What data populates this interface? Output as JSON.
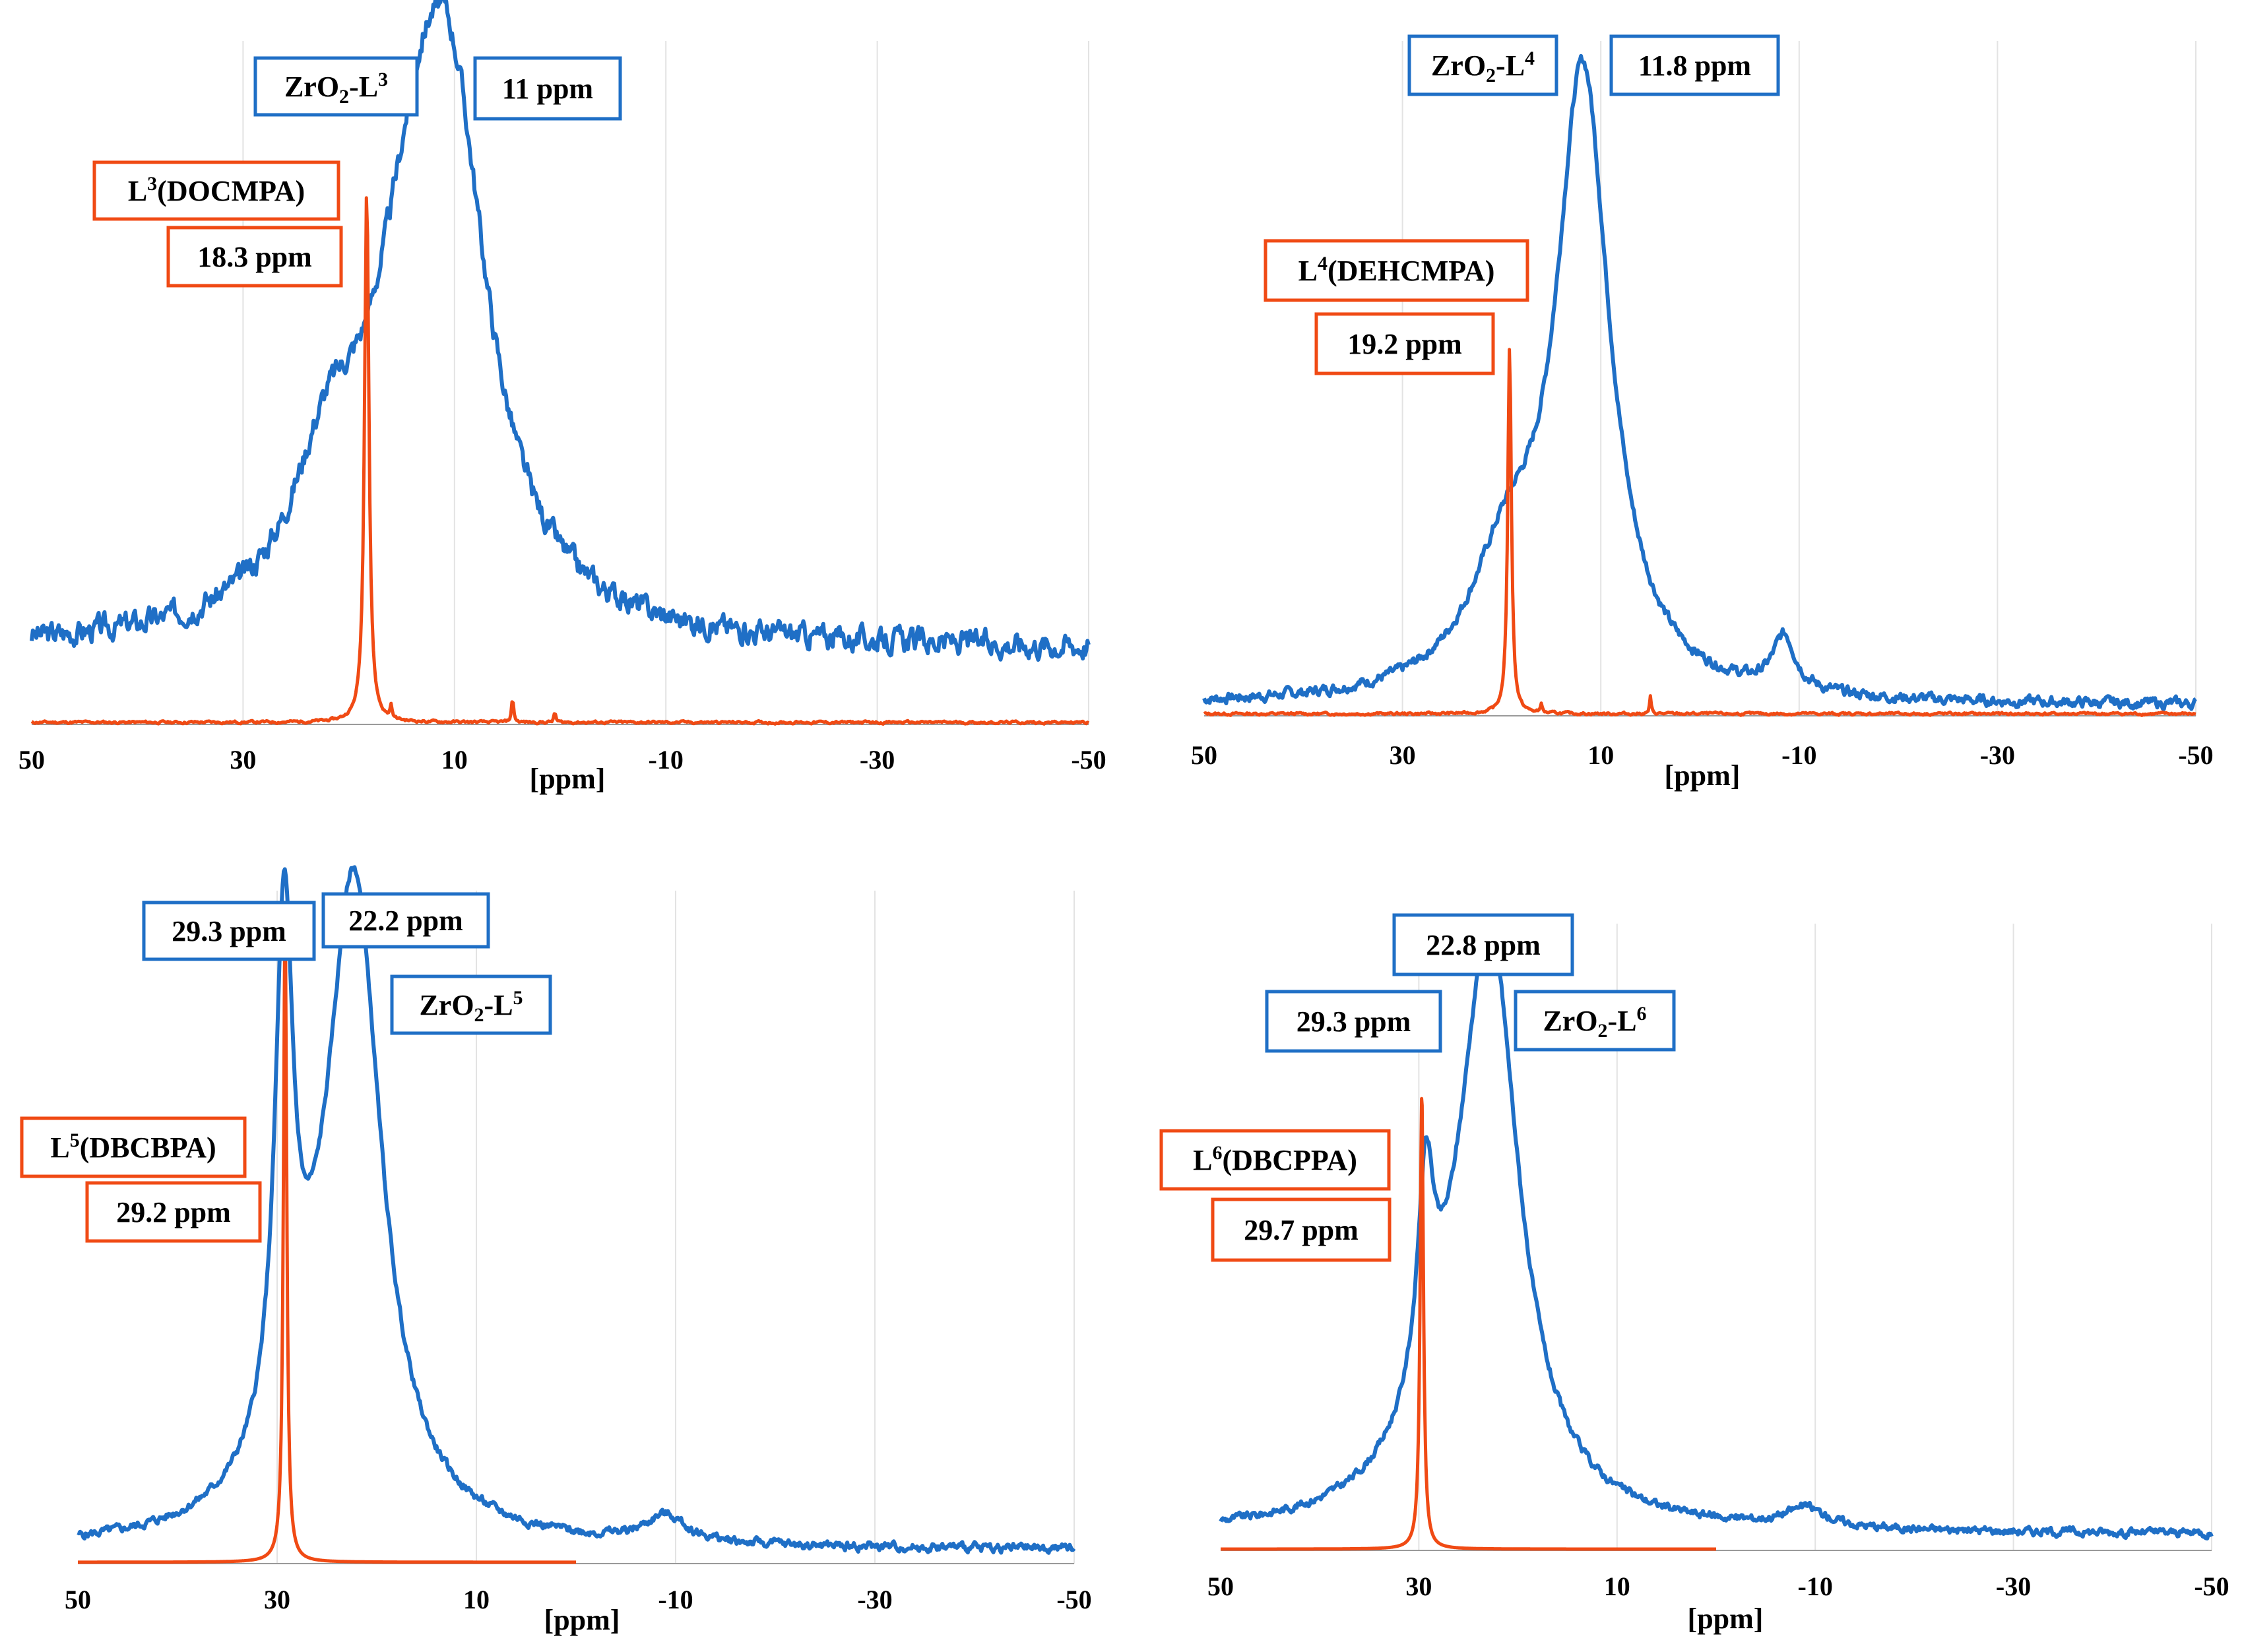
{
  "colors": {
    "composite": "#1F6FC6",
    "ligand": "#F04A14",
    "grid": "#e3e3e3",
    "axis": "#9a9a9a",
    "text": "#000000"
  },
  "chart_data": [
    {
      "type": "line",
      "id": "panel-l3",
      "xlabel": "[ppm]",
      "xlim": [
        50,
        -50
      ],
      "x_ticks": [
        50,
        30,
        10,
        -10,
        -30,
        -50
      ],
      "x_tick_labels": [
        "50",
        "30",
        "10",
        "-10",
        "-30",
        "-50"
      ],
      "grid": true,
      "series": [
        {
          "name": "ZrO2-L3",
          "role": "composite",
          "peaks": [
            {
              "center": 13,
              "height": 0.62,
              "width": 5.5
            },
            {
              "center": 10,
              "height": 0.4,
              "width": 4.0
            },
            {
              "center": 22,
              "height": 0.18,
              "width": 4.0
            }
          ],
          "baseline": 0.11,
          "noise": 0.014,
          "seed": 3
        },
        {
          "name": "L3(DOCMPA)",
          "role": "ligand",
          "peaks": [
            {
              "center": 18.3,
              "height": 0.79,
              "width": 0.25
            },
            {
              "center": 4.5,
              "height": 0.035,
              "width": 0.12
            },
            {
              "center": 16.0,
              "height": 0.02,
              "width": 0.1
            },
            {
              "center": 0.5,
              "height": 0.015,
              "width": 0.1
            }
          ],
          "baseline": 0.003,
          "noise": 0.0015,
          "seed": 11
        }
      ],
      "annotations": [
        {
          "main": "ZrO",
          "sub": "2",
          "mid": "-L",
          "sup": "3",
          "role": "composite",
          "target": "composite-species"
        },
        {
          "text": "11 ppm",
          "role": "composite",
          "target": "composite-peak-shift"
        },
        {
          "main": "L",
          "sup": "3",
          "rest": "(DOCMPA)",
          "role": "ligand",
          "target": "ligand-name"
        },
        {
          "text": "18.3 ppm",
          "role": "ligand",
          "target": "ligand-peak-shift"
        }
      ]
    },
    {
      "type": "line",
      "id": "panel-l4",
      "xlabel": "[ppm]",
      "xlim": [
        50,
        -50
      ],
      "x_ticks": [
        50,
        30,
        10,
        -10,
        -30,
        -50
      ],
      "x_tick_labels": [
        "50",
        "30",
        "10",
        "-10",
        "-30",
        "-50"
      ],
      "grid": true,
      "series": [
        {
          "name": "ZrO2-L4",
          "role": "composite",
          "peaks": [
            {
              "center": 11.8,
              "height": 0.92,
              "width": 3.3
            },
            {
              "center": 19.5,
              "height": 0.17,
              "width": 4.5
            },
            {
              "center": -8.5,
              "height": 0.08,
              "width": 1.4
            }
          ],
          "baseline": 0.015,
          "noise": 0.006,
          "seed": 7
        },
        {
          "name": "L4(DEHCMPA)",
          "role": "ligand",
          "peaks": [
            {
              "center": 19.2,
              "height": 0.55,
              "width": 0.22
            },
            {
              "center": 5.0,
              "height": 0.025,
              "width": 0.1
            },
            {
              "center": 16.0,
              "height": 0.015,
              "width": 0.1
            }
          ],
          "baseline": 0.003,
          "noise": 0.0015,
          "seed": 13
        }
      ],
      "annotations": [
        {
          "main": "ZrO",
          "sub": "2",
          "mid": "-L",
          "sup": "4",
          "role": "composite",
          "target": "composite-species"
        },
        {
          "text": "11.8 ppm",
          "role": "composite",
          "target": "composite-peak-shift"
        },
        {
          "main": "L",
          "sup": "4",
          "rest": "(DEHCMPA)",
          "role": "ligand",
          "target": "ligand-name"
        },
        {
          "text": "19.2 ppm",
          "role": "ligand",
          "target": "ligand-peak-shift"
        }
      ]
    },
    {
      "type": "line",
      "id": "panel-l5",
      "xlabel": "[ppm]",
      "xlim": [
        50,
        -50
      ],
      "x_ticks": [
        50,
        30,
        10,
        -10,
        -30,
        -50
      ],
      "x_tick_labels": [
        "50",
        "30",
        "10",
        "-10",
        "-30",
        "-50"
      ],
      "grid": true,
      "series": [
        {
          "name": "ZrO2-L5",
          "role": "composite",
          "peaks": [
            {
              "center": 29.3,
              "height": 0.75,
              "width": 1.1
            },
            {
              "center": 22.2,
              "height": 0.88,
              "width": 3.2
            },
            {
              "center": 25.5,
              "height": 0.15,
              "width": 6.0
            },
            {
              "center": -9,
              "height": 0.04,
              "width": 2.5
            }
          ],
          "baseline": 0.02,
          "noise": 0.005,
          "seed": 5
        },
        {
          "name": "L5(DBCBPA)",
          "role": "ligand",
          "peaks": [
            {
              "center": 29.2,
              "height": 0.96,
              "width": 0.2
            }
          ],
          "baseline": 0.002,
          "noise": 0.0,
          "seed": 17
        }
      ],
      "annotations": [
        {
          "text": "29.3 ppm",
          "role": "composite",
          "target": "composite-peak-shift-1"
        },
        {
          "text": "22.2 ppm",
          "role": "composite",
          "target": "composite-peak-shift-2"
        },
        {
          "main": "ZrO",
          "sub": "2",
          "mid": "-L",
          "sup": "5",
          "role": "composite",
          "target": "composite-species"
        },
        {
          "main": "L",
          "sup": "5",
          "rest": "(DBCBPA)",
          "role": "ligand",
          "target": "ligand-name"
        },
        {
          "text": "29.2 ppm",
          "role": "ligand",
          "target": "ligand-peak-shift"
        }
      ]
    },
    {
      "type": "line",
      "id": "panel-l6",
      "xlabel": "[ppm]",
      "xlim": [
        50,
        -50
      ],
      "x_ticks": [
        50,
        30,
        10,
        -10,
        -30,
        -50
      ],
      "x_tick_labels": [
        "50",
        "30",
        "10",
        "-10",
        "-30",
        "-50"
      ],
      "grid": true,
      "series": [
        {
          "name": "ZrO2-L6",
          "role": "composite",
          "peaks": [
            {
              "center": 29.3,
              "height": 0.32,
              "width": 1.0
            },
            {
              "center": 22.8,
              "height": 0.84,
              "width": 3.5
            },
            {
              "center": 26.0,
              "height": 0.15,
              "width": 6.0
            },
            {
              "center": -9,
              "height": 0.03,
              "width": 2.5
            }
          ],
          "baseline": 0.025,
          "noise": 0.005,
          "seed": 9
        },
        {
          "name": "L6(DBCPPA)",
          "role": "ligand",
          "peaks": [
            {
              "center": 29.7,
              "height": 0.72,
              "width": 0.2
            }
          ],
          "baseline": 0.002,
          "noise": 0.0,
          "seed": 19
        }
      ],
      "annotations": [
        {
          "text": "22.8 ppm",
          "role": "composite",
          "target": "composite-peak-shift-2"
        },
        {
          "text": "29.3 ppm",
          "role": "composite",
          "target": "composite-peak-shift-1"
        },
        {
          "main": "ZrO",
          "sub": "2",
          "mid": "-L",
          "sup": "6",
          "role": "composite",
          "target": "composite-species"
        },
        {
          "main": "L",
          "sup": "6",
          "rest": "(DBCPPA)",
          "role": "ligand",
          "target": "ligand-name"
        },
        {
          "text": "29.7 ppm",
          "role": "ligand",
          "target": "ligand-peak-shift"
        }
      ]
    }
  ]
}
